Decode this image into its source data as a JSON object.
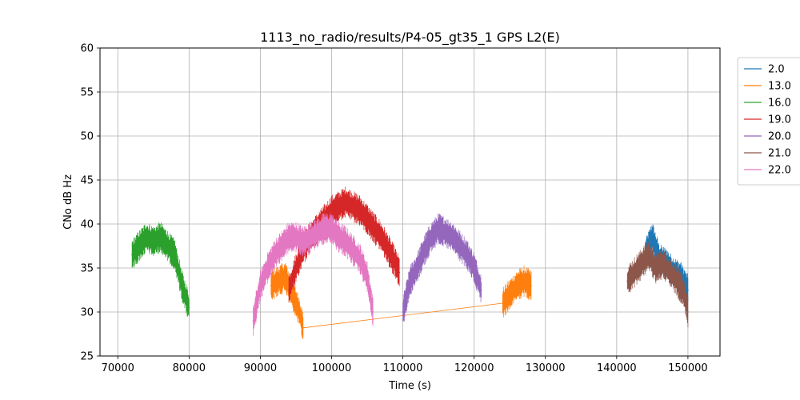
{
  "chart_data": {
    "type": "line",
    "title": "1113_no_radio/results/P4-05_gt35_1 GPS L2(E)",
    "xlabel": "Time (s)",
    "ylabel": "CNo dB Hz",
    "xlim": [
      67500,
      154500
    ],
    "ylim": [
      25,
      60
    ],
    "xticks": [
      70000,
      80000,
      90000,
      100000,
      110000,
      120000,
      130000,
      140000,
      150000
    ],
    "xtick_labels": [
      "70000",
      "80000",
      "90000",
      "100000",
      "110000",
      "120000",
      "130000",
      "140000",
      "150000"
    ],
    "yticks": [
      25,
      30,
      35,
      40,
      45,
      50,
      55,
      60
    ],
    "ytick_labels": [
      "25",
      "30",
      "35",
      "40",
      "45",
      "50",
      "55",
      "60"
    ],
    "grid": true,
    "legend_position": "outside-top-right",
    "series": [
      {
        "name": "2.0",
        "color": "#1f77b4",
        "x": [
          144000,
          145000,
          146000,
          147000,
          148000,
          149000,
          150000
        ],
        "y": [
          36.5,
          38.5,
          36.0,
          35.5,
          34.5,
          34.0,
          32.5
        ]
      },
      {
        "name": "13.0",
        "color": "#ff7f0e",
        "x": [
          91500,
          92500,
          93500,
          94500,
          95500,
          96000,
          124000,
          125000,
          126000,
          127000,
          128000
        ],
        "y": [
          33.0,
          33.5,
          34.0,
          32.0,
          30.0,
          28.2,
          31.0,
          32.0,
          33.0,
          33.5,
          33.0
        ]
      },
      {
        "name": "16.0",
        "color": "#2ca02c",
        "x": [
          72000,
          73000,
          74000,
          75000,
          76000,
          77000,
          78000,
          79000,
          80000
        ],
        "y": [
          36.5,
          37.5,
          38.5,
          38.0,
          38.5,
          37.5,
          36.5,
          33.0,
          30.5
        ]
      },
      {
        "name": "19.0",
        "color": "#d62728",
        "x": [
          94000,
          95000,
          96000,
          97000,
          98000,
          99000,
          100000,
          101000,
          102000,
          103000,
          104000,
          105000,
          106000,
          107000,
          108000,
          109000,
          109500
        ],
        "y": [
          32.5,
          35.0,
          37.0,
          38.5,
          39.5,
          40.5,
          41.5,
          42.0,
          42.5,
          42.0,
          41.5,
          40.5,
          39.5,
          38.5,
          37.0,
          35.5,
          34.5
        ]
      },
      {
        "name": "20.0",
        "color": "#9467bd",
        "x": [
          110000,
          111000,
          112000,
          113000,
          114000,
          115000,
          116000,
          117000,
          118000,
          119000,
          120000,
          121000
        ],
        "y": [
          30.0,
          33.5,
          35.0,
          37.0,
          38.5,
          39.5,
          39.0,
          38.5,
          37.5,
          36.5,
          35.0,
          32.5
        ]
      },
      {
        "name": "21.0",
        "color": "#8c564b",
        "x": [
          141500,
          142500,
          143500,
          144500,
          145500,
          146500,
          147500,
          148500,
          149500,
          150000
        ],
        "y": [
          33.5,
          34.5,
          35.5,
          36.5,
          35.0,
          35.5,
          34.5,
          33.5,
          32.0,
          30.0
        ]
      },
      {
        "name": "22.0",
        "color": "#e377c2",
        "x": [
          89000,
          90000,
          91000,
          92000,
          93000,
          94000,
          95000,
          96000,
          97000,
          98000,
          99000,
          100000,
          101000,
          102000,
          103000,
          104000,
          105000,
          105800
        ],
        "y": [
          29.0,
          33.0,
          35.0,
          36.5,
          37.5,
          38.5,
          38.5,
          38.0,
          38.5,
          39.0,
          39.5,
          39.5,
          38.5,
          38.0,
          37.0,
          36.0,
          34.0,
          30.0
        ]
      }
    ]
  }
}
